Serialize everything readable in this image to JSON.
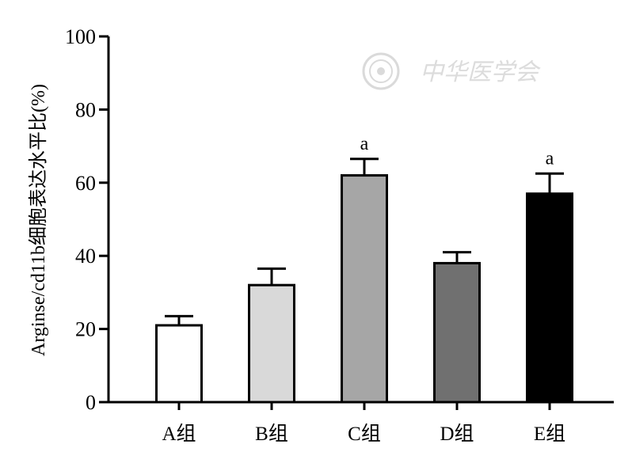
{
  "chart_data": {
    "type": "bar",
    "categories": [
      "A组",
      "B组",
      "C组",
      "D组",
      "E组"
    ],
    "values": [
      21,
      32,
      62,
      38,
      57
    ],
    "errors": [
      2.5,
      4.5,
      4.5,
      3,
      5.5
    ],
    "annotations": [
      "",
      "",
      "a",
      "",
      "a"
    ],
    "colors": [
      "#ffffff",
      "#d9d9d9",
      "#a6a6a6",
      "#707070",
      "#000000"
    ],
    "ylabel": "Arginse/cd11b细胞表达水平比(%)",
    "ylim": [
      0,
      100
    ],
    "yticks": [
      0,
      20,
      40,
      60,
      80,
      100
    ],
    "grid": false
  },
  "watermark": {
    "text": "中华医学会",
    "icon": "society-seal-icon"
  }
}
